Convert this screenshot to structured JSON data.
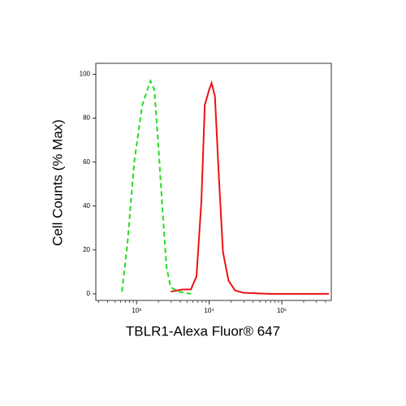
{
  "chart_data": {
    "type": "line",
    "xlabel": "TBLR1-Alexa Fluor® 647",
    "ylabel": "Cell Counts (% Max)",
    "xscale": "log",
    "xlim": [
      275,
      480000
    ],
    "ylim": [
      -3,
      105
    ],
    "xticks": [
      {
        "value": 1000,
        "label": "10³"
      },
      {
        "value": 10000,
        "label": "10⁴"
      },
      {
        "value": 100000,
        "label": "10⁵"
      }
    ],
    "xminorticks": [
      300,
      400,
      500,
      600,
      700,
      800,
      900,
      2000,
      3000,
      4000,
      5000,
      6000,
      7000,
      8000,
      9000,
      20000,
      30000,
      40000,
      50000,
      60000,
      70000,
      80000,
      90000,
      200000,
      300000,
      400000
    ],
    "yticks": [
      0,
      20,
      40,
      60,
      80,
      100
    ],
    "series": [
      {
        "color": "#22dd22",
        "dash": true,
        "x": [
          630,
          750,
          930,
          1200,
          1550,
          1760,
          2000,
          2280,
          2590,
          2950,
          3800,
          5600
        ],
        "values": [
          1,
          23,
          60,
          86,
          97,
          93,
          67,
          38,
          12,
          3,
          1,
          0
        ]
      },
      {
        "color": "#ee1111",
        "dash": false,
        "x": [
          2950,
          4300,
          5600,
          6700,
          7800,
          8700,
          10000,
          10800,
          12000,
          13600,
          15500,
          18500,
          22800,
          29500,
          64600,
          444000
        ],
        "values": [
          1,
          2,
          2,
          8,
          42,
          86,
          93,
          96,
          90,
          53,
          19,
          6,
          1.5,
          0.5,
          0,
          0
        ]
      }
    ]
  }
}
